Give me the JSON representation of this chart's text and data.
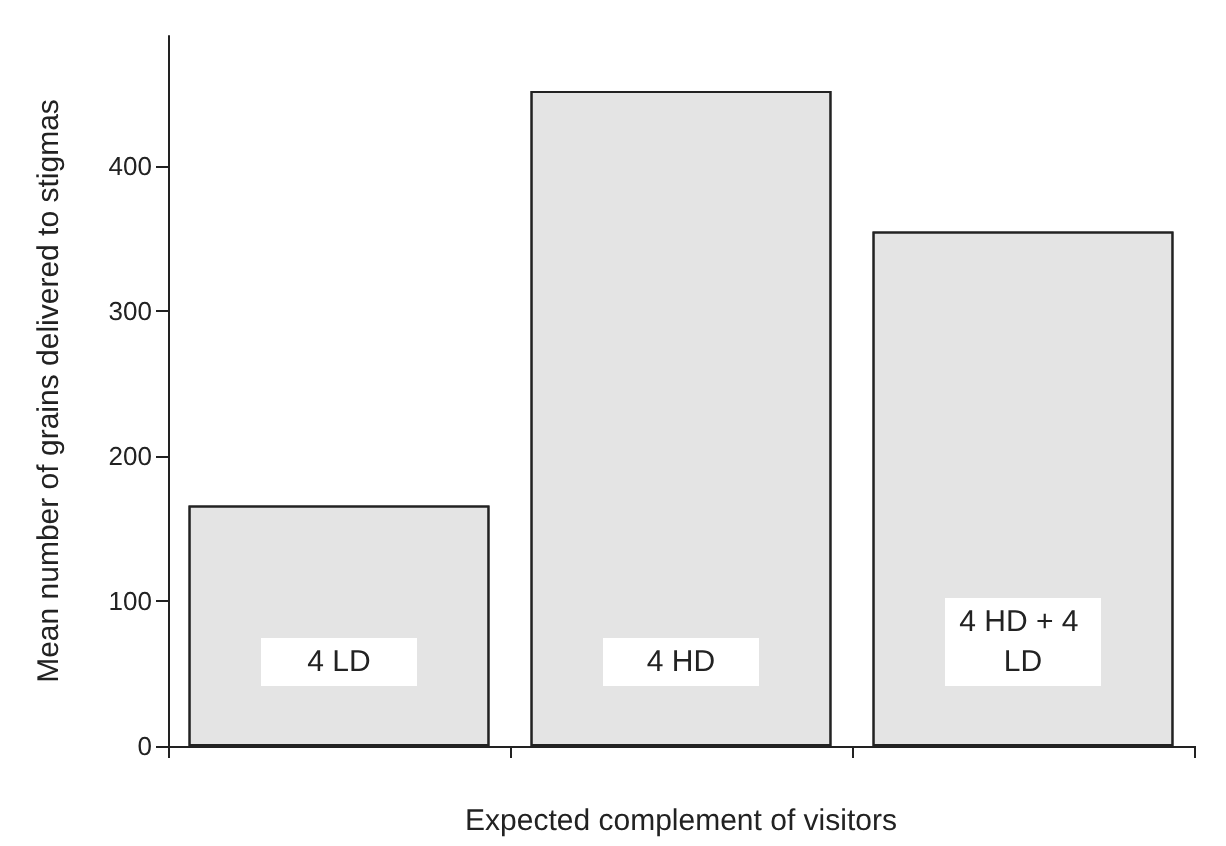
{
  "chart_data": {
    "type": "bar",
    "xlabel": "Expected complement of visitors",
    "ylabel": "Mean number of grains delivered to stigmas",
    "categories": [
      "4 LD",
      "4 HD",
      "4 HD + 4 LD"
    ],
    "values": [
      166,
      452,
      355
    ],
    "color": "#e4e4e4",
    "ylim": [
      0,
      490
    ],
    "yticks": [
      0,
      100,
      200,
      300,
      400
    ],
    "grid": false,
    "tick_labels": "y"
  }
}
